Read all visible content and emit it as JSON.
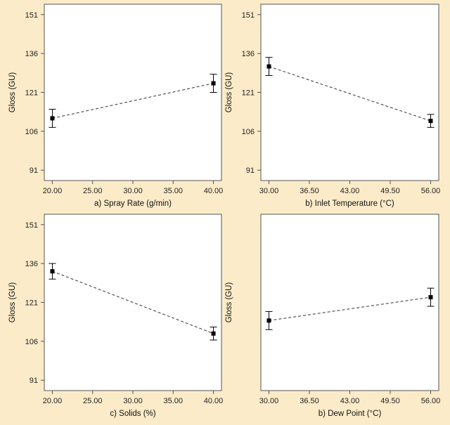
{
  "chart_data": [
    {
      "type": "line",
      "panel": "a",
      "xlabel": "a) Spray Rate (g/min)",
      "ylabel": "Gloss (GU)",
      "x_ticks": [
        "20.00",
        "25.00",
        "30.00",
        "35.00",
        "40.00"
      ],
      "y_ticks": [
        "91",
        "106",
        "121",
        "136",
        "151"
      ],
      "xlim": [
        19,
        41
      ],
      "ylim": [
        87,
        155
      ],
      "show_y_tick_labels": true,
      "points": [
        {
          "x": 20,
          "y": 111.0,
          "err_low": 3.5,
          "err_high": 3.5
        },
        {
          "x": 40,
          "y": 124.5,
          "err_low": 3.5,
          "err_high": 3.5
        }
      ]
    },
    {
      "type": "line",
      "panel": "b",
      "xlabel": "b) Inlet Temperature (°C)",
      "ylabel": "Gloss (GU)",
      "x_ticks": [
        "30.00",
        "36.50",
        "43.00",
        "49.50",
        "56.00"
      ],
      "y_ticks": [
        "91",
        "106",
        "121",
        "136",
        "151"
      ],
      "xlim": [
        28.7,
        57.3
      ],
      "ylim": [
        87,
        155
      ],
      "show_y_tick_labels": true,
      "points": [
        {
          "x": 30,
          "y": 131.0,
          "err_low": 3.5,
          "err_high": 3.5
        },
        {
          "x": 56,
          "y": 110.0,
          "err_low": 2.5,
          "err_high": 2.5
        }
      ]
    },
    {
      "type": "line",
      "panel": "c",
      "xlabel": "c) Solids (%)",
      "ylabel": "Gloss (GU)",
      "x_ticks": [
        "20.00",
        "25.00",
        "30.00",
        "35.00",
        "40.00"
      ],
      "y_ticks": [
        "91",
        "106",
        "121",
        "136",
        "151"
      ],
      "xlim": [
        19,
        41
      ],
      "ylim": [
        87,
        155
      ],
      "show_y_tick_labels": true,
      "points": [
        {
          "x": 20,
          "y": 133.0,
          "err_low": 3.0,
          "err_high": 3.0
        },
        {
          "x": 40,
          "y": 109.0,
          "err_low": 2.5,
          "err_high": 2.5
        }
      ]
    },
    {
      "type": "line",
      "panel": "d",
      "xlabel": "b) Dew Point (°C)",
      "ylabel": "Gloss (GU)",
      "x_ticks": [
        "30.00",
        "36.50",
        "43.00",
        "49.50",
        "56.00"
      ],
      "y_ticks": [],
      "xlim": [
        28.7,
        57.3
      ],
      "ylim": [
        87,
        155
      ],
      "show_y_tick_labels": false,
      "points": [
        {
          "x": 30,
          "y": 114.0,
          "err_low": 3.5,
          "err_high": 3.5
        },
        {
          "x": 56,
          "y": 123.0,
          "err_low": 3.5,
          "err_high": 3.5
        }
      ]
    }
  ],
  "colors": {
    "background": "#fbebc8",
    "plot_area": "#ffffff",
    "frame": "#555555",
    "marker": "#000000",
    "line": "#333333"
  }
}
